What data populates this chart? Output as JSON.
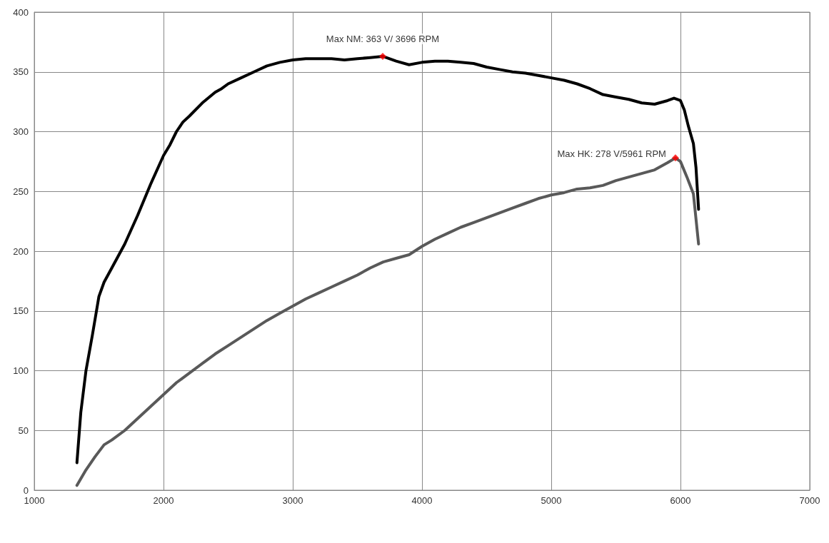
{
  "chart_data": {
    "type": "line",
    "xlim": [
      1000,
      7000
    ],
    "xticks": [
      1000,
      2000,
      3000,
      4000,
      5000,
      6000,
      7000
    ],
    "ylim": [
      0,
      400
    ],
    "yticks": [
      0,
      50,
      100,
      150,
      200,
      250,
      300,
      350,
      400
    ],
    "grid": true,
    "marker": "none",
    "line_style": "solid",
    "series": [
      {
        "color": "#000000",
        "x": [
          1330,
          1360,
          1400,
          1450,
          1500,
          1540,
          1600,
          1700,
          1800,
          1900,
          2000,
          2050,
          2100,
          2150,
          2200,
          2300,
          2400,
          2450,
          2500,
          2600,
          2700,
          2800,
          2900,
          3000,
          3100,
          3200,
          3300,
          3400,
          3500,
          3600,
          3696,
          3800,
          3900,
          4000,
          4100,
          4200,
          4300,
          4400,
          4500,
          4600,
          4700,
          4800,
          4900,
          5000,
          5100,
          5200,
          5300,
          5400,
          5500,
          5600,
          5700,
          5800,
          5900,
          5950,
          6000,
          6030,
          6060,
          6100,
          6120,
          6140
        ],
        "values": [
          23,
          65,
          100,
          130,
          162,
          174,
          186,
          206,
          230,
          256,
          280,
          289,
          300,
          308,
          313,
          324,
          333,
          336,
          340,
          345,
          350,
          355,
          358,
          360,
          361,
          361,
          361,
          360,
          361,
          362,
          363,
          359,
          356,
          358,
          359,
          359,
          358,
          357,
          354,
          352,
          350,
          349,
          347,
          345,
          343,
          340,
          336,
          331,
          329,
          327,
          324,
          323,
          326,
          328,
          326,
          318,
          305,
          290,
          270,
          235
        ]
      },
      {
        "color": "#595959",
        "x": [
          1330,
          1400,
          1470,
          1540,
          1600,
          1700,
          1800,
          1900,
          2000,
          2100,
          2200,
          2300,
          2400,
          2500,
          2600,
          2700,
          2800,
          2900,
          3000,
          3100,
          3200,
          3300,
          3400,
          3500,
          3600,
          3700,
          3800,
          3900,
          4000,
          4100,
          4200,
          4300,
          4400,
          4500,
          4600,
          4700,
          4800,
          4900,
          5000,
          5100,
          5200,
          5300,
          5400,
          5500,
          5600,
          5700,
          5800,
          5900,
          5961,
          6000,
          6050,
          6100,
          6140
        ],
        "values": [
          4,
          17,
          28,
          38,
          42,
          50,
          60,
          70,
          80,
          90,
          98,
          106,
          114,
          121,
          128,
          135,
          142,
          148,
          154,
          160,
          165,
          170,
          175,
          180,
          186,
          191,
          194,
          197,
          204,
          210,
          215,
          220,
          224,
          228,
          232,
          236,
          240,
          244,
          247,
          249,
          252,
          253,
          255,
          259,
          262,
          265,
          268,
          274,
          278,
          275,
          262,
          248,
          206
        ]
      },
      {
        "type": "scatter",
        "marker": "diamond",
        "color": "#ff0000",
        "x": [
          3696
        ],
        "values": [
          363
        ]
      },
      {
        "type": "scatter",
        "marker": "diamond",
        "color": "#ff0000",
        "x": [
          5961
        ],
        "values": [
          278
        ]
      }
    ],
    "annotations": [
      {
        "text": "Max NM: 363 V/ 3696 RPM",
        "x": 3696,
        "y": 363
      },
      {
        "text": "Max HK: 278 V/5961 RPM",
        "x": 5961,
        "y": 278
      }
    ]
  }
}
